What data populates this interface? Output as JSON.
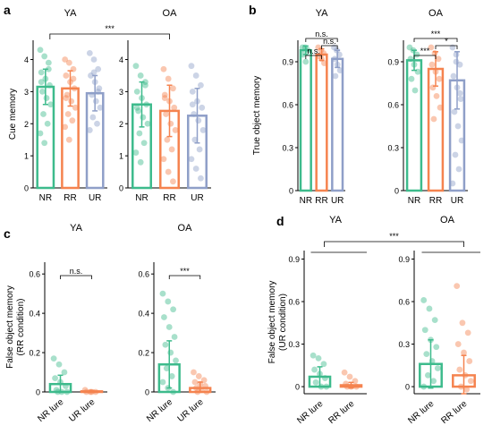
{
  "figure": {
    "label_ya": "YA",
    "label_oa": "OA"
  },
  "colors": {
    "nr": "#3dbb8c",
    "rr": "#f5834f",
    "ur": "#8f9fc8"
  },
  "chart_data": [
    {
      "id": "a",
      "type": "bar",
      "panel_label": "a",
      "ylabel": "Cue memory",
      "ylim": [
        0,
        4.6
      ],
      "yticks": [
        0,
        1,
        2,
        3,
        4
      ],
      "bar_style": "outline",
      "significance_across_groups": "***",
      "groups": [
        {
          "name": "YA",
          "categories": [
            "NR",
            "RR",
            "UR"
          ],
          "values": [
            3.15,
            3.1,
            2.95
          ],
          "errors": [
            0.55,
            0.55,
            0.55
          ],
          "points": [
            [
              4.3,
              4.1,
              3.9,
              3.6,
              3.4,
              3.2,
              3.0,
              2.8,
              2.6,
              2.3,
              2.0,
              1.7,
              1.4,
              3.7,
              3.3
            ],
            [
              4.0,
              3.9,
              3.7,
              3.5,
              3.3,
              3.1,
              2.9,
              2.7,
              2.5,
              2.3,
              2.1,
              1.9,
              1.5,
              3.4,
              2.8
            ],
            [
              4.2,
              4.0,
              3.7,
              3.5,
              3.3,
              3.1,
              2.9,
              2.7,
              2.5,
              2.2,
              2.0,
              1.8,
              3.6,
              3.0
            ]
          ]
        },
        {
          "name": "OA",
          "categories": [
            "NR",
            "RR",
            "UR"
          ],
          "values": [
            2.6,
            2.4,
            2.25
          ],
          "errors": [
            0.7,
            0.8,
            0.85
          ],
          "points": [
            [
              3.8,
              3.5,
              3.3,
              3.0,
              2.8,
              2.6,
              2.4,
              2.2,
              2.0,
              1.7,
              1.4,
              1.1,
              0.8,
              3.2,
              2.5
            ],
            [
              3.7,
              3.4,
              3.1,
              2.9,
              2.7,
              2.5,
              2.3,
              2.0,
              1.8,
              1.5,
              1.2,
              0.9,
              0.5,
              0.2,
              2.8
            ],
            [
              3.8,
              3.5,
              3.2,
              3.0,
              2.7,
              2.5,
              2.3,
              2.1,
              1.8,
              1.5,
              1.2,
              0.9,
              0.6,
              0.3,
              2.6
            ]
          ]
        }
      ]
    },
    {
      "id": "b",
      "type": "bar",
      "panel_label": "b",
      "ylabel": "True object memory",
      "ylim": [
        0,
        1.05
      ],
      "yticks": [
        0,
        0.3,
        0.6,
        0.9
      ],
      "bar_style": "outline",
      "groups": [
        {
          "name": "YA",
          "categories": [
            "NR",
            "RR",
            "UR"
          ],
          "values": [
            0.98,
            0.95,
            0.92
          ],
          "errors": [
            0.03,
            0.04,
            0.06
          ],
          "points": [
            [
              1.0,
              1.0,
              0.98,
              0.95,
              0.9
            ],
            [
              1.0,
              0.98,
              0.96,
              0.94,
              0.92,
              0.89
            ],
            [
              1.0,
              0.98,
              0.95,
              0.92,
              0.88,
              0.84,
              0.8
            ]
          ],
          "significance": [
            {
              "from": 0,
              "to": 1,
              "label": "n.s."
            },
            {
              "from": 1,
              "to": 2,
              "label": "n.s."
            },
            {
              "from": 0,
              "to": 2,
              "label": "n.s."
            }
          ]
        },
        {
          "name": "OA",
          "categories": [
            "NR",
            "RR",
            "UR"
          ],
          "values": [
            0.91,
            0.85,
            0.77
          ],
          "errors": [
            0.07,
            0.12,
            0.2
          ],
          "points": [
            [
              1.0,
              0.98,
              0.95,
              0.92,
              0.88,
              0.83,
              0.78,
              0.7
            ],
            [
              1.0,
              0.96,
              0.92,
              0.88,
              0.83,
              0.78,
              0.72,
              0.66,
              0.58,
              0.5
            ],
            [
              1.0,
              0.95,
              0.88,
              0.8,
              0.72,
              0.64,
              0.55,
              0.45,
              0.35,
              0.25,
              0.15,
              0.05,
              0.9,
              0.68
            ]
          ],
          "significance": [
            {
              "from": 0,
              "to": 1,
              "label": "***"
            },
            {
              "from": 1,
              "to": 2,
              "label": "*"
            },
            {
              "from": 0,
              "to": 2,
              "label": "***"
            }
          ]
        }
      ]
    },
    {
      "id": "c",
      "type": "bar",
      "panel_label": "c",
      "ylabel": "False object memory (RR condition)",
      "ylim": [
        0,
        0.66
      ],
      "yticks": [
        0,
        0.2,
        0.4,
        0.6
      ],
      "bar_style": "outline",
      "groups": [
        {
          "name": "YA",
          "categories": [
            "NR lure",
            "UR lure"
          ],
          "values": [
            0.04,
            0.003
          ],
          "errors": [
            0.045,
            0.005
          ],
          "points": [
            [
              0.17,
              0.14,
              0.1,
              0.07,
              0.05,
              0.03,
              0.01,
              0.0,
              0.0,
              0.0
            ],
            [
              0.01,
              0.0,
              0.0,
              0.0,
              0.0
            ]
          ],
          "significance": [
            {
              "from": 0,
              "to": 1,
              "label": "n.s."
            }
          ]
        },
        {
          "name": "OA",
          "categories": [
            "NR lure",
            "UR lure"
          ],
          "values": [
            0.14,
            0.02
          ],
          "errors": [
            0.12,
            0.03
          ],
          "points": [
            [
              0.5,
              0.46,
              0.42,
              0.38,
              0.33,
              0.28,
              0.24,
              0.2,
              0.16,
              0.12,
              0.08,
              0.05,
              0.02,
              0.0
            ],
            [
              0.1,
              0.08,
              0.06,
              0.05,
              0.04,
              0.03,
              0.02,
              0.01,
              0.0,
              0.0
            ]
          ],
          "significance": [
            {
              "from": 0,
              "to": 1,
              "label": "***"
            }
          ]
        }
      ]
    },
    {
      "id": "d",
      "type": "bar",
      "panel_label": "d",
      "ylabel": "False object memory (UR condition)",
      "ylim": [
        -0.05,
        0.96
      ],
      "yticks": [
        0,
        0.3,
        0.6,
        0.9
      ],
      "bar_style": "outline",
      "significance_across_groups": "***",
      "groups": [
        {
          "name": "YA",
          "categories": [
            "NR lure",
            "RR lure"
          ],
          "values": [
            0.07,
            0.01
          ],
          "errors": [
            0.07,
            0.02
          ],
          "points": [
            [
              0.22,
              0.2,
              0.16,
              0.12,
              0.09,
              0.06,
              0.03,
              0.0,
              0.0
            ],
            [
              0.1,
              0.07,
              0.04,
              0.02,
              0.0,
              0.0,
              0.0
            ]
          ]
        },
        {
          "name": "OA",
          "categories": [
            "NR lure",
            "RR lure"
          ],
          "values": [
            0.16,
            0.08
          ],
          "errors": [
            0.17,
            0.14
          ],
          "points": [
            [
              0.61,
              0.55,
              0.47,
              0.4,
              0.33,
              0.28,
              0.23,
              0.18,
              0.13,
              0.08,
              0.04,
              0.0
            ],
            [
              0.71,
              0.45,
              0.38,
              0.3,
              0.24,
              0.18,
              0.12,
              0.08,
              0.04,
              0.0,
              -0.02
            ]
          ]
        }
      ]
    }
  ]
}
